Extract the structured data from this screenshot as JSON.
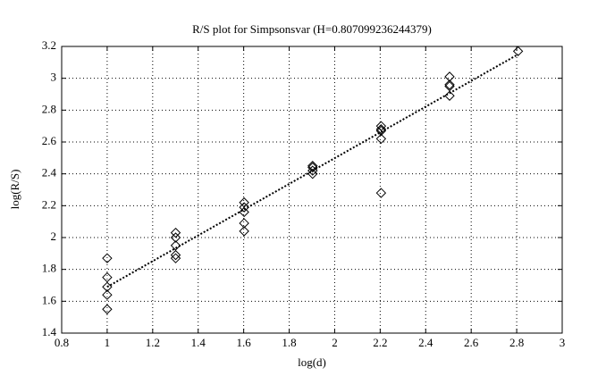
{
  "chart_data": {
    "type": "scatter",
    "title": "R/S plot for Simpsonsvar (H=0.807099236244379)",
    "xlabel": "log(d)",
    "ylabel": "log(R/S)",
    "x": [
      1,
      1,
      1,
      1,
      1,
      1.301,
      1.301,
      1.301,
      1.301,
      1.301,
      1.602,
      1.602,
      1.602,
      1.602,
      1.602,
      1.903,
      1.903,
      1.903,
      1.903,
      2.204,
      2.204,
      2.204,
      2.204,
      2.204,
      2.505,
      2.505,
      2.505,
      2.505,
      2.806
    ],
    "y": [
      1.87,
      1.75,
      1.69,
      1.64,
      1.55,
      2.03,
      2.0,
      1.95,
      1.89,
      1.87,
      2.22,
      2.19,
      2.16,
      2.09,
      2.04,
      2.45,
      2.44,
      2.42,
      2.4,
      2.7,
      2.68,
      2.67,
      2.62,
      2.28,
      3.01,
      2.96,
      2.95,
      2.89,
      3.17
    ],
    "color": "#000000",
    "fit": {
      "x": [
        1,
        2.806
      ],
      "y": [
        1.69,
        3.15
      ]
    },
    "xlim": [
      0.8,
      3
    ],
    "xticks": [
      0.8,
      1,
      1.2,
      1.4,
      1.6,
      1.8,
      2,
      2.2,
      2.4,
      2.6,
      2.8,
      3
    ],
    "ylim": [
      1.4,
      3.2
    ],
    "yticks": [
      1.4,
      1.6,
      1.8,
      2,
      2.2,
      2.4,
      2.6,
      2.8,
      3,
      3.2
    ],
    "grid": true
  }
}
